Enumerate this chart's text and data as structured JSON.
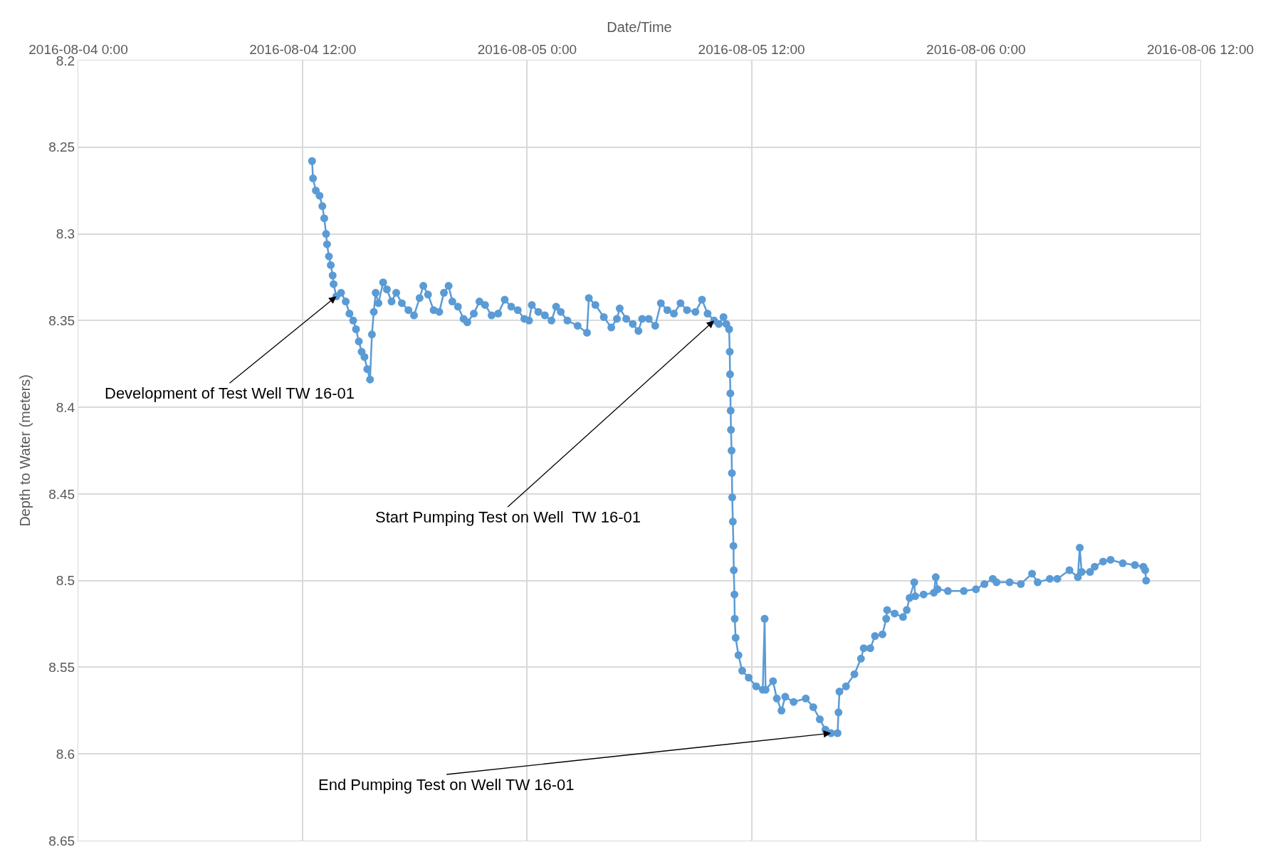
{
  "chart_data": {
    "type": "line",
    "xlabel": "Date/Time",
    "ylabel": "Depth to Water (meters)",
    "x": [
      "2016-08-04T12:30",
      "2016-08-04T12:33",
      "2016-08-04T12:42",
      "2016-08-04T12:54",
      "2016-08-04T13:03",
      "2016-08-04T13:09",
      "2016-08-04T13:15",
      "2016-08-04T13:18",
      "2016-08-04T13:24",
      "2016-08-04T13:30",
      "2016-08-04T13:36",
      "2016-08-04T13:39",
      "2016-08-04T13:48",
      "2016-08-04T14:03",
      "2016-08-04T14:18",
      "2016-08-04T14:30",
      "2016-08-04T14:42",
      "2016-08-04T14:51",
      "2016-08-04T15:00",
      "2016-08-04T15:09",
      "2016-08-04T15:18",
      "2016-08-04T15:27",
      "2016-08-04T15:36",
      "2016-08-04T15:42",
      "2016-08-04T15:48",
      "2016-08-04T15:54",
      "2016-08-04T16:03",
      "2016-08-04T16:18",
      "2016-08-04T16:30",
      "2016-08-04T16:45",
      "2016-08-04T17:00",
      "2016-08-04T17:18",
      "2016-08-04T17:39",
      "2016-08-04T17:57",
      "2016-08-04T18:15",
      "2016-08-04T18:27",
      "2016-08-04T18:42",
      "2016-08-04T19:00",
      "2016-08-04T19:18",
      "2016-08-04T19:33",
      "2016-08-04T19:48",
      "2016-08-04T20:00",
      "2016-08-04T20:18",
      "2016-08-04T20:36",
      "2016-08-04T20:48",
      "2016-08-04T21:09",
      "2016-08-04T21:27",
      "2016-08-04T21:45",
      "2016-08-04T22:06",
      "2016-08-04T22:27",
      "2016-08-04T22:48",
      "2016-08-04T23:09",
      "2016-08-04T23:30",
      "2016-08-04T23:51",
      "2016-08-05T00:06",
      "2016-08-05T00:15",
      "2016-08-05T00:36",
      "2016-08-05T00:57",
      "2016-08-05T01:18",
      "2016-08-05T01:33",
      "2016-08-05T01:48",
      "2016-08-05T02:09",
      "2016-08-05T02:42",
      "2016-08-05T03:12",
      "2016-08-05T03:18",
      "2016-08-05T03:39",
      "2016-08-05T04:06",
      "2016-08-05T04:30",
      "2016-08-05T04:48",
      "2016-08-05T04:57",
      "2016-08-05T05:18",
      "2016-08-05T05:39",
      "2016-08-05T05:57",
      "2016-08-05T06:09",
      "2016-08-05T06:30",
      "2016-08-05T06:51",
      "2016-08-05T07:09",
      "2016-08-05T07:30",
      "2016-08-05T07:51",
      "2016-08-05T08:12",
      "2016-08-05T08:33",
      "2016-08-05T09:00",
      "2016-08-05T09:21",
      "2016-08-05T09:39",
      "2016-08-05T10:00",
      "2016-08-05T10:15",
      "2016-08-05T10:30",
      "2016-08-05T10:39",
      "2016-08-05T10:48",
      "2016-08-05T10:50",
      "2016-08-05T10:51",
      "2016-08-05T10:52",
      "2016-08-05T10:53",
      "2016-08-05T10:54",
      "2016-08-05T10:56",
      "2016-08-05T10:57",
      "2016-08-05T10:58",
      "2016-08-05T11:00",
      "2016-08-05T11:02",
      "2016-08-05T11:03",
      "2016-08-05T11:05",
      "2016-08-05T11:06",
      "2016-08-05T11:09",
      "2016-08-05T11:18",
      "2016-08-05T11:30",
      "2016-08-05T11:51",
      "2016-08-05T12:15",
      "2016-08-05T12:36",
      "2016-08-05T12:42",
      "2016-08-05T12:45",
      "2016-08-05T13:09",
      "2016-08-05T13:21",
      "2016-08-05T13:36",
      "2016-08-05T13:48",
      "2016-08-05T14:15",
      "2016-08-05T14:54",
      "2016-08-05T15:18",
      "2016-08-05T15:39",
      "2016-08-05T15:57",
      "2016-08-05T16:15",
      "2016-08-05T16:36",
      "2016-08-05T16:39",
      "2016-08-05T16:42",
      "2016-08-05T17:03",
      "2016-08-05T17:30",
      "2016-08-05T17:51",
      "2016-08-05T18:00",
      "2016-08-05T18:21",
      "2016-08-05T18:36",
      "2016-08-05T19:00",
      "2016-08-05T19:12",
      "2016-08-05T19:15",
      "2016-08-05T19:39",
      "2016-08-05T20:06",
      "2016-08-05T20:18",
      "2016-08-05T20:27",
      "2016-08-05T20:42",
      "2016-08-05T20:45",
      "2016-08-05T21:12",
      "2016-08-05T21:45",
      "2016-08-05T21:51",
      "2016-08-05T21:57",
      "2016-08-05T22:30",
      "2016-08-05T23:21",
      "2016-08-06T00:00",
      "2016-08-06T00:27",
      "2016-08-06T00:54",
      "2016-08-06T01:06",
      "2016-08-06T01:48",
      "2016-08-06T02:24",
      "2016-08-06T03:00",
      "2016-08-06T03:18",
      "2016-08-06T03:57",
      "2016-08-06T04:21",
      "2016-08-06T05:00",
      "2016-08-06T05:27",
      "2016-08-06T05:33",
      "2016-08-06T05:39",
      "2016-08-06T06:06",
      "2016-08-06T06:21",
      "2016-08-06T06:48",
      "2016-08-06T07:12",
      "2016-08-06T07:51",
      "2016-08-06T08:30",
      "2016-08-06T08:57",
      "2016-08-06T09:03",
      "2016-08-06T09:06"
    ],
    "series": [
      {
        "color": "#5b9bd5",
        "values": [
          8.258,
          8.268,
          8.275,
          8.278,
          8.284,
          8.291,
          8.3,
          8.306,
          8.313,
          8.318,
          8.324,
          8.329,
          8.336,
          8.334,
          8.339,
          8.346,
          8.35,
          8.355,
          8.362,
          8.368,
          8.371,
          8.378,
          8.384,
          8.358,
          8.345,
          8.334,
          8.34,
          8.328,
          8.332,
          8.339,
          8.334,
          8.34,
          8.344,
          8.347,
          8.337,
          8.33,
          8.335,
          8.344,
          8.345,
          8.334,
          8.33,
          8.339,
          8.342,
          8.349,
          8.351,
          8.346,
          8.339,
          8.341,
          8.347,
          8.346,
          8.338,
          8.342,
          8.344,
          8.349,
          8.35,
          8.341,
          8.345,
          8.347,
          8.35,
          8.342,
          8.345,
          8.35,
          8.353,
          8.357,
          8.337,
          8.341,
          8.348,
          8.354,
          8.349,
          8.343,
          8.349,
          8.352,
          8.356,
          8.349,
          8.349,
          8.353,
          8.34,
          8.344,
          8.346,
          8.34,
          8.344,
          8.345,
          8.338,
          8.346,
          8.35,
          8.352,
          8.348,
          8.352,
          8.355,
          8.368,
          8.381,
          8.392,
          8.402,
          8.413,
          8.425,
          8.438,
          8.452,
          8.466,
          8.48,
          8.494,
          8.508,
          8.522,
          8.533,
          8.543,
          8.552,
          8.556,
          8.561,
          8.563,
          8.522,
          8.563,
          8.558,
          8.568,
          8.575,
          8.567,
          8.57,
          8.568,
          8.573,
          8.58,
          8.586,
          8.588,
          8.588,
          8.576,
          8.564,
          8.561,
          8.554,
          8.545,
          8.539,
          8.539,
          8.532,
          8.531,
          8.522,
          8.517,
          8.519,
          8.521,
          8.517,
          8.51,
          8.501,
          8.509,
          8.508,
          8.507,
          8.498,
          8.505,
          8.506,
          8.506,
          8.505,
          8.502,
          8.499,
          8.501,
          8.501,
          8.502,
          8.496,
          8.501,
          8.499,
          8.499,
          8.494,
          8.498,
          8.481,
          8.495,
          8.495,
          8.492,
          8.489,
          8.488,
          8.49,
          8.491,
          8.492,
          8.494,
          8.5
        ]
      }
    ],
    "xlim": [
      "2016-08-04T00:00",
      "2016-08-06T12:00"
    ],
    "xticks": [
      {
        "value": "2016-08-04T00:00",
        "label": "2016-08-04 0:00"
      },
      {
        "value": "2016-08-04T12:00",
        "label": "2016-08-04 12:00"
      },
      {
        "value": "2016-08-05T00:00",
        "label": "2016-08-05 0:00"
      },
      {
        "value": "2016-08-05T12:00",
        "label": "2016-08-05 12:00"
      },
      {
        "value": "2016-08-06T00:00",
        "label": "2016-08-06 0:00"
      },
      {
        "value": "2016-08-06T12:00",
        "label": "2016-08-06 12:00"
      }
    ],
    "ylim": [
      8.65,
      8.2
    ],
    "yticks": [
      8.2,
      8.25,
      8.3,
      8.35,
      8.4,
      8.45,
      8.5,
      8.55,
      8.6,
      8.65
    ],
    "grid": true,
    "marker": "circle",
    "line_style": "solid",
    "annotations": [
      {
        "text": "Development of Test Well TW 16-01",
        "x": "2016-08-04T13:48",
        "y": 8.336
      },
      {
        "text": "Start Pumping Test on Well  TW 16-01",
        "x": "2016-08-05T10:00",
        "y": 8.35
      },
      {
        "text": "End Pumping Test on Well TW 16-01",
        "x": "2016-08-05T16:15",
        "y": 8.588
      }
    ]
  }
}
